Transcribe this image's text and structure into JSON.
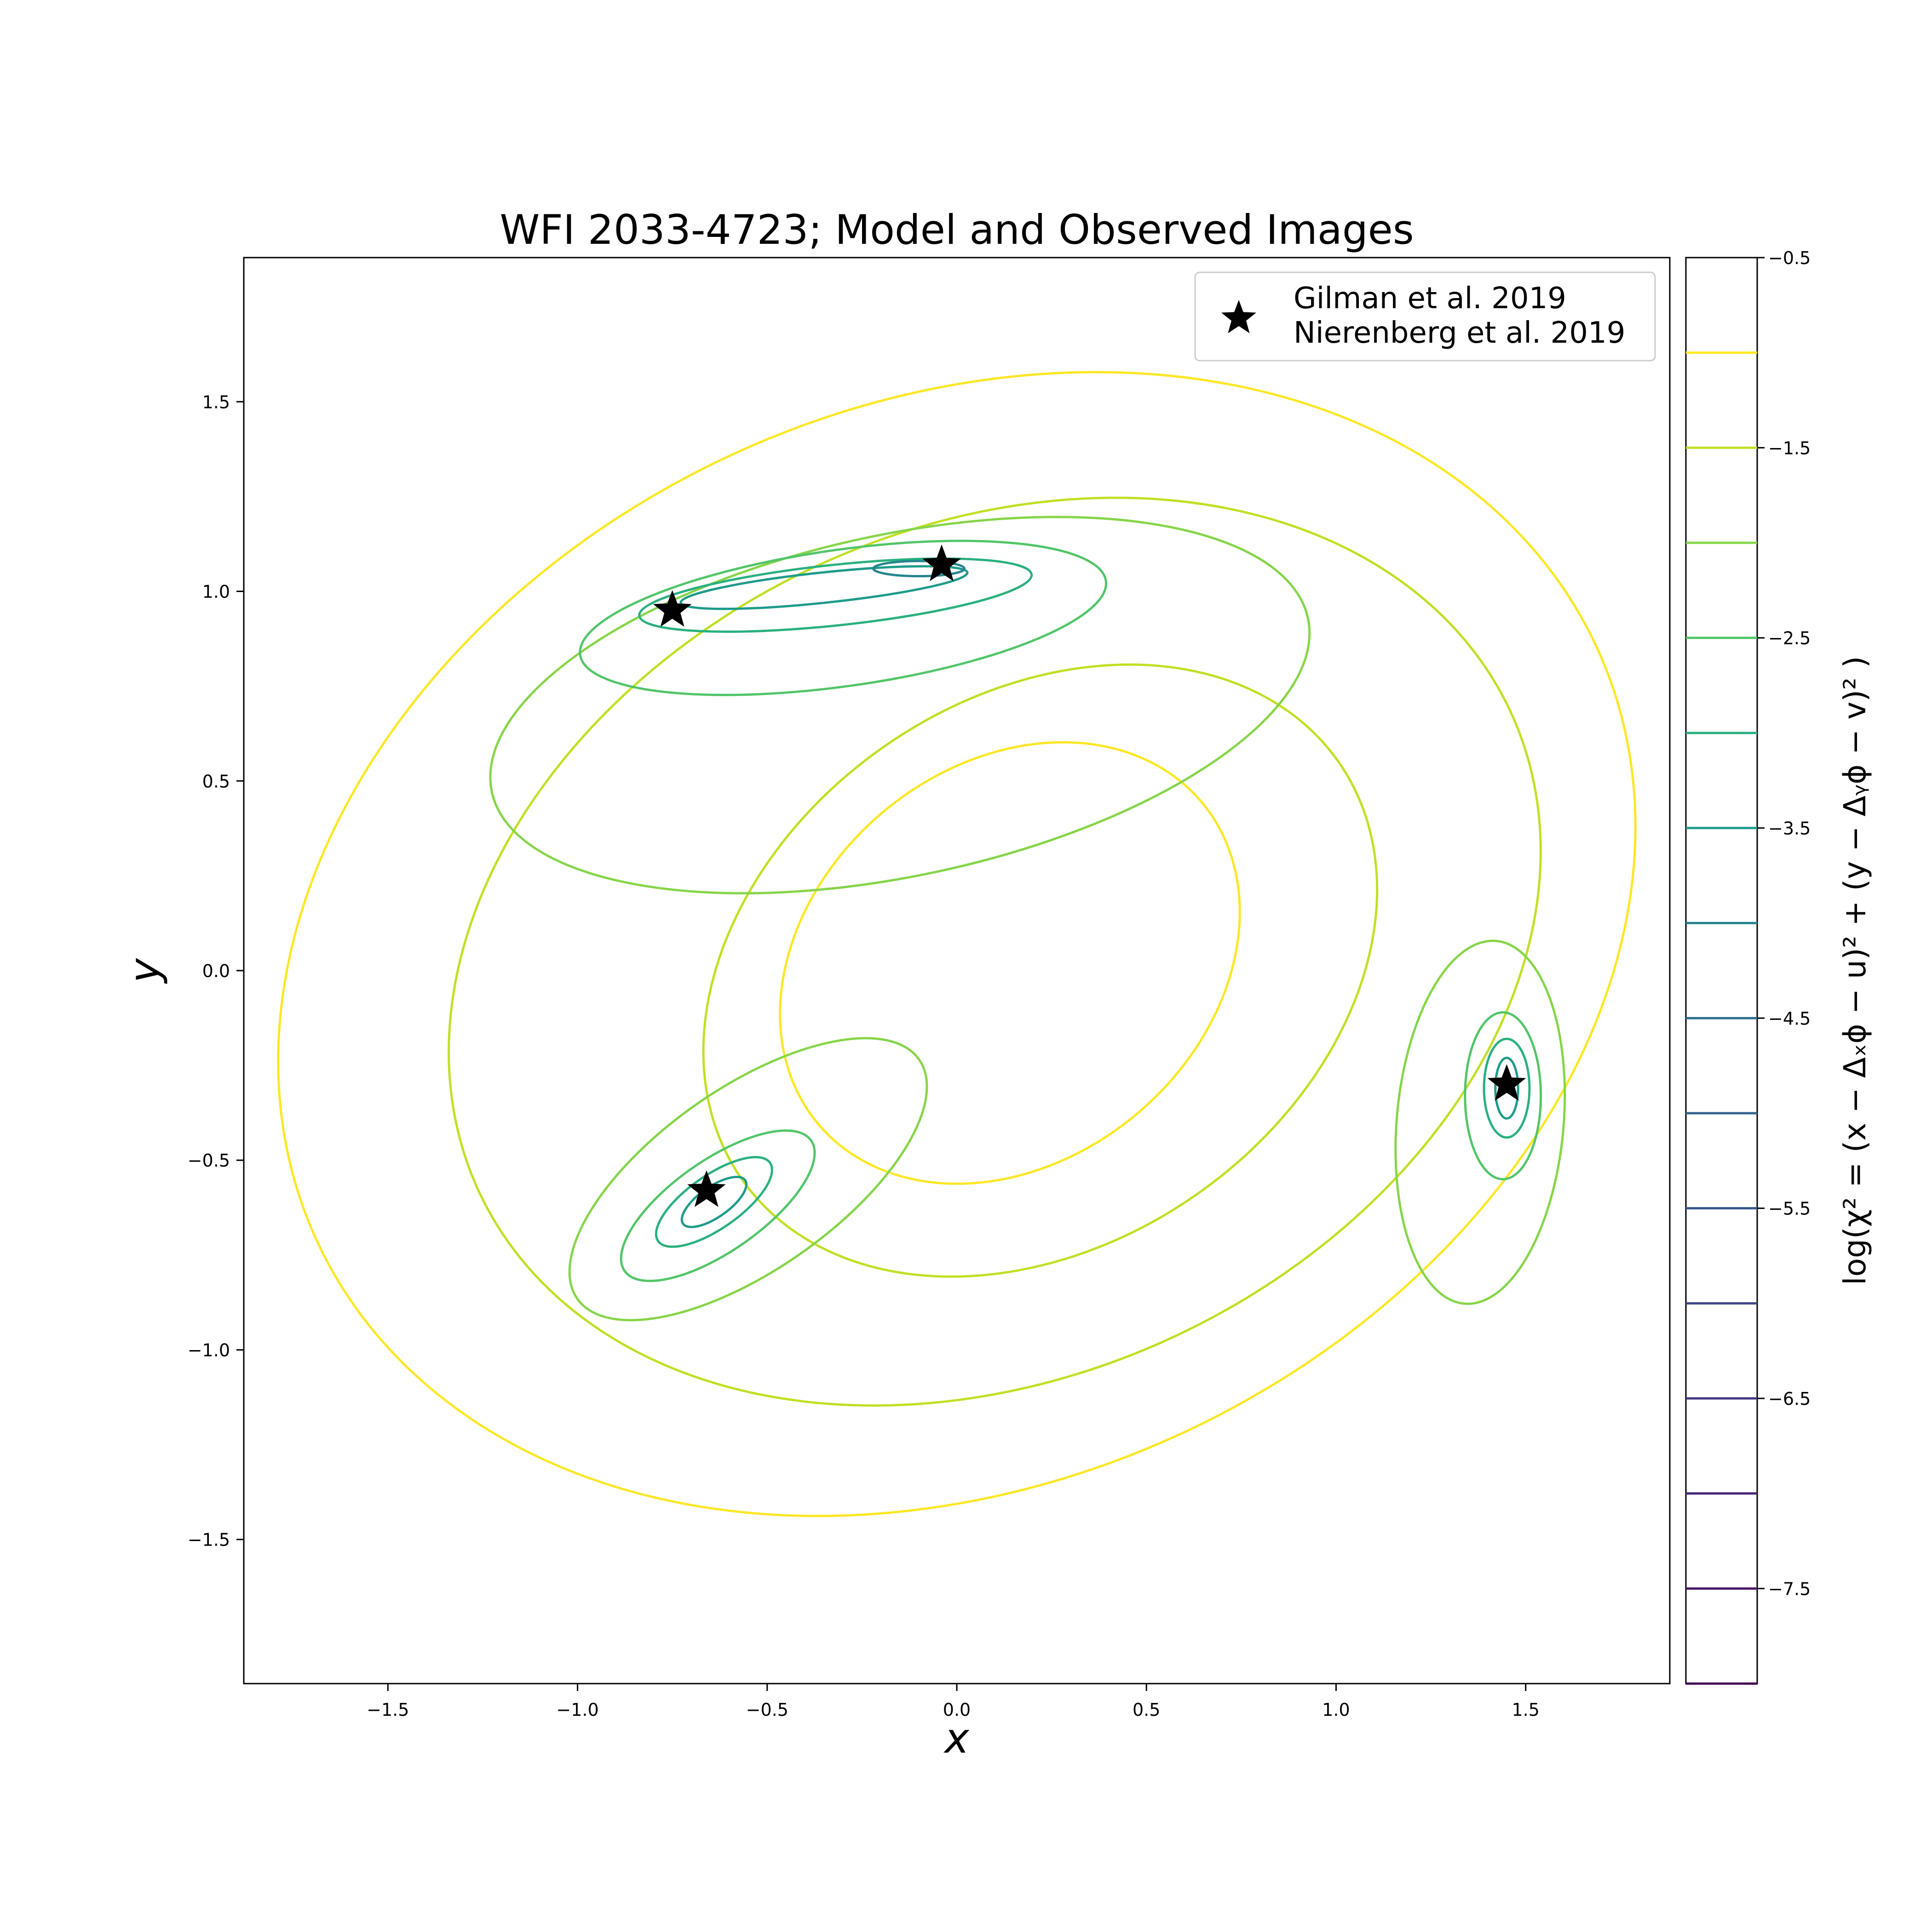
{
  "chart_data": {
    "type": "contour",
    "title": "WFI 2033-4723; Model and Observed Images",
    "xlabel": "x",
    "ylabel": "y",
    "xlim": [
      -1.88,
      1.88
    ],
    "ylim": [
      -1.88,
      1.88
    ],
    "x_ticks": [
      -1.5,
      -1.0,
      -0.5,
      0.0,
      0.5,
      1.0,
      1.5
    ],
    "y_ticks": [
      -1.5,
      -1.0,
      -0.5,
      0.0,
      0.5,
      1.0,
      1.5
    ],
    "x_tick_labels": [
      "−1.5",
      "−1.0",
      "−0.5",
      "0.0",
      "0.5",
      "1.0",
      "1.5"
    ],
    "y_tick_labels": [
      "−1.5",
      "−1.0",
      "−0.5",
      "0.0",
      "0.5",
      "1.0",
      "1.5"
    ],
    "colormap": "viridis",
    "colorbar": {
      "label": "log(χ² = (x − Δₓϕ − u)² + (y − Δᵧϕ − v)² )",
      "range": [
        -8.0,
        -0.5
      ],
      "levels": [
        -1.0,
        -1.5,
        -2.0,
        -2.5,
        -3.0,
        -3.5,
        -4.0,
        -4.5,
        -5.0,
        -5.5,
        -6.0,
        -6.5,
        -7.0,
        -7.5,
        -8.0
      ],
      "ticks": [
        -0.5,
        -1.5,
        -2.5,
        -3.5,
        -4.5,
        -5.5,
        -6.5,
        -7.5
      ],
      "tick_labels": [
        "−0.5",
        "−1.5",
        "−2.5",
        "−3.5",
        "−4.5",
        "−5.5",
        "−6.5",
        "−7.5"
      ]
    },
    "legend": {
      "placement": "upper right",
      "labels": [
        "Gilman et al. 2019",
        "Nierenberg et al. 2019"
      ]
    },
    "series": [
      {
        "name": "Gilman et al. 2019 / Nierenberg et al. 2019",
        "marker": "star",
        "color": "#000000",
        "points": [
          {
            "x": -0.75,
            "y": 0.95
          },
          {
            "x": -0.04,
            "y": 1.07
          },
          {
            "x": -0.66,
            "y": -0.58
          },
          {
            "x": 1.45,
            "y": -0.3
          }
        ]
      }
    ],
    "contours": [
      {
        "level": -1.0,
        "color": "#fde725",
        "cx": 0.0,
        "cy": 0.07,
        "rx": 1.86,
        "ry": 1.42,
        "rot": -25
      },
      {
        "level": -1.0,
        "color": "#fde725",
        "cx": 0.14,
        "cy": 0.02,
        "rx": 0.66,
        "ry": 0.52,
        "rot": -40
      },
      {
        "level": -1.5,
        "color": "#c2df23",
        "cx": 0.1,
        "cy": 0.05,
        "rx": 1.5,
        "ry": 1.12,
        "rot": -25
      },
      {
        "level": -1.5,
        "color": "#c2df23",
        "cx": 0.22,
        "cy": 0.0,
        "rx": 0.96,
        "ry": 0.72,
        "rot": -35
      },
      {
        "level": -2.0,
        "color": "#86d549",
        "cx": -0.15,
        "cy": 0.7,
        "rx": 1.1,
        "ry": 0.45,
        "rot": -12
      },
      {
        "level": -2.0,
        "color": "#86d549",
        "cx": -0.55,
        "cy": -0.55,
        "rx": 0.55,
        "ry": 0.24,
        "rot": -35
      },
      {
        "level": -2.0,
        "color": "#86d549",
        "cx": 1.38,
        "cy": -0.4,
        "rx": 0.22,
        "ry": 0.48,
        "rot": 5
      },
      {
        "level": -2.5,
        "color": "#52c569",
        "cx": -0.3,
        "cy": 0.93,
        "rx": 0.7,
        "ry": 0.18,
        "rot": -8
      },
      {
        "level": -2.5,
        "color": "#52c569",
        "cx": -0.63,
        "cy": -0.62,
        "rx": 0.3,
        "ry": 0.12,
        "rot": -35
      },
      {
        "level": -2.5,
        "color": "#52c569",
        "cx": 1.44,
        "cy": -0.33,
        "rx": 0.1,
        "ry": 0.22,
        "rot": 0
      },
      {
        "level": -3.0,
        "color": "#2ab07f",
        "cx": -0.32,
        "cy": 0.99,
        "rx": 0.52,
        "ry": 0.08,
        "rot": -6
      },
      {
        "level": -3.0,
        "color": "#2ab07f",
        "cx": -0.64,
        "cy": -0.61,
        "rx": 0.18,
        "ry": 0.07,
        "rot": -35
      },
      {
        "level": -3.0,
        "color": "#2ab07f",
        "cx": 1.45,
        "cy": -0.31,
        "rx": 0.06,
        "ry": 0.13,
        "rot": 0
      },
      {
        "level": -3.5,
        "color": "#1e9b8a",
        "cx": -0.35,
        "cy": 1.01,
        "rx": 0.38,
        "ry": 0.04,
        "rot": -6
      },
      {
        "level": -3.5,
        "color": "#1e9b8a",
        "cx": -0.64,
        "cy": -0.61,
        "rx": 0.1,
        "ry": 0.04,
        "rot": -35
      },
      {
        "level": -3.5,
        "color": "#1e9b8a",
        "cx": 1.45,
        "cy": -0.31,
        "rx": 0.03,
        "ry": 0.08,
        "rot": 0
      },
      {
        "level": -4.0,
        "color": "#25858e",
        "cx": -0.1,
        "cy": 1.06,
        "rx": 0.12,
        "ry": 0.02,
        "rot": 0
      }
    ]
  }
}
